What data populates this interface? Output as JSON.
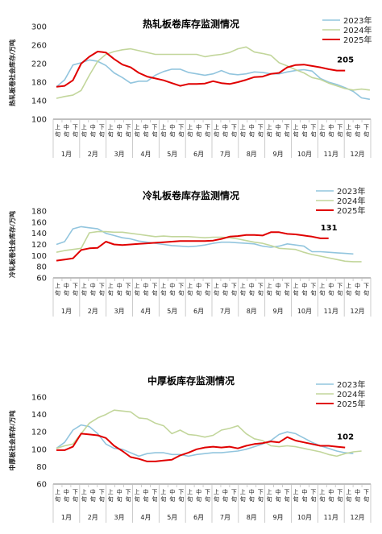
{
  "colors": {
    "s2023": "#92c5de",
    "s2024": "#c2d69b",
    "s2025": "#e00000",
    "axis": "#808080"
  },
  "chart_data": [
    {
      "type": "line",
      "title": "热轧板卷库存监测情况",
      "ylabel": "热轧板卷社会库存/万吨",
      "ylim": [
        100,
        300
      ],
      "yticks": [
        100,
        140,
        180,
        220,
        260,
        300
      ],
      "xtick_labels": [
        "上旬",
        "中旬",
        "下旬",
        "上旬",
        "中旬",
        "下旬",
        "上旬",
        "中旬",
        "下旬",
        "上旬",
        "中旬",
        "下旬",
        "上旬",
        "中旬",
        "下旬",
        "上旬",
        "中旬",
        "下旬",
        "上旬",
        "中旬",
        "下旬",
        "上旬",
        "中旬",
        "下旬",
        "上旬",
        "中旬",
        "下旬",
        "上旬",
        "中旬",
        "下旬",
        "上旬",
        "中旬",
        "下旬",
        "上旬",
        "中旬",
        "下旬"
      ],
      "months": [
        "1月",
        "2月",
        "3月",
        "4月",
        "5月",
        "6月",
        "7月",
        "8月",
        "9月",
        "10月",
        "11月",
        "12月"
      ],
      "series": [
        {
          "name": "2023年",
          "values": [
            170,
            185,
            217,
            222,
            228,
            225,
            216,
            200,
            190,
            178,
            182,
            182,
            195,
            203,
            208,
            208,
            201,
            198,
            195,
            198,
            205,
            198,
            196,
            198,
            202,
            201,
            198,
            198,
            202,
            205,
            207,
            204,
            188,
            180,
            175,
            168,
            160,
            146,
            143
          ]
        },
        {
          "name": "2024年",
          "values": [
            145,
            149,
            152,
            162,
            195,
            225,
            240,
            246,
            250,
            252,
            248,
            244,
            240,
            240,
            240,
            240,
            240,
            240,
            235,
            238,
            240,
            244,
            252,
            256,
            245,
            242,
            238,
            222,
            215,
            207,
            200,
            190,
            186,
            178,
            172,
            166,
            163,
            165,
            163
          ]
        },
        {
          "name": "2025年",
          "values": [
            170,
            172,
            184,
            220,
            235,
            246,
            244,
            230,
            218,
            212,
            200,
            192,
            188,
            184,
            178,
            172,
            176,
            176,
            177,
            182,
            178,
            176,
            180,
            185,
            191,
            192,
            198,
            200,
            212,
            217,
            218,
            215,
            212,
            208,
            205,
            205
          ]
        }
      ],
      "end_label": "205"
    },
    {
      "type": "line",
      "title": "冷轧板卷库存监测情况",
      "ylabel": "冷轧板卷社会库存/万吨",
      "ylim": [
        60,
        180
      ],
      "yticks": [
        60,
        80,
        100,
        120,
        140,
        160,
        180
      ],
      "xtick_labels": [
        "上旬",
        "中旬",
        "下旬",
        "上旬",
        "中旬",
        "下旬",
        "上旬",
        "中旬",
        "下旬",
        "上旬",
        "中旬",
        "下旬",
        "上旬",
        "中旬",
        "下旬",
        "上旬",
        "中旬",
        "下旬",
        "上旬",
        "中旬",
        "下旬",
        "上旬",
        "中旬",
        "下旬",
        "上旬",
        "中旬",
        "下旬",
        "上旬",
        "中旬",
        "下旬",
        "上旬",
        "中旬",
        "下旬",
        "上旬",
        "中旬",
        "下旬"
      ],
      "months": [
        "1月",
        "2月",
        "3月",
        "4月",
        "5月",
        "6月",
        "7月",
        "8月",
        "9月",
        "10月",
        "11月",
        "12月"
      ],
      "series": [
        {
          "name": "2023年",
          "values": [
            120,
            125,
            148,
            152,
            150,
            148,
            140,
            136,
            132,
            130,
            126,
            124,
            122,
            120,
            118,
            117,
            116,
            117,
            119,
            122,
            124,
            124,
            123,
            122,
            121,
            117,
            115,
            117,
            121,
            119,
            117,
            107,
            107,
            106,
            105,
            104,
            103
          ]
        },
        {
          "name": "2024年",
          "values": [
            106,
            109,
            111,
            113,
            141,
            143,
            143,
            142,
            142,
            140,
            138,
            136,
            134,
            135,
            134,
            134,
            134,
            133,
            132,
            133,
            133,
            132,
            130,
            127,
            124,
            122,
            118,
            113,
            112,
            111,
            106,
            102,
            99,
            96,
            93,
            90,
            89,
            89
          ]
        },
        {
          "name": "2025年",
          "values": [
            91,
            93,
            95,
            110,
            113,
            114,
            125,
            120,
            119,
            120,
            121,
            122,
            123,
            124,
            125,
            126,
            126,
            126,
            126,
            127,
            130,
            134,
            135,
            137,
            137,
            136,
            142,
            142,
            139,
            138,
            136,
            134,
            131,
            131
          ]
        }
      ],
      "end_label": "131"
    },
    {
      "type": "line",
      "title": "中厚板库存监测情况",
      "ylabel": "中厚板社会库存/万吨",
      "ylim": [
        60,
        160
      ],
      "yticks": [
        60,
        80,
        100,
        120,
        140,
        160
      ],
      "xtick_labels": [
        "上旬",
        "中旬",
        "下旬",
        "上旬",
        "中旬",
        "下旬",
        "上旬",
        "中旬",
        "下旬",
        "上旬",
        "中旬",
        "下旬",
        "上旬",
        "中旬",
        "下旬",
        "上旬",
        "中旬",
        "下旬",
        "上旬",
        "中旬",
        "下旬",
        "上旬",
        "中旬",
        "下旬",
        "上旬",
        "中旬",
        "下旬",
        "上旬",
        "中旬",
        "下旬",
        "上旬",
        "中旬",
        "下旬",
        "上旬",
        "中旬",
        "下旬"
      ],
      "months": [
        "1月",
        "2月",
        "3月",
        "4月",
        "5月",
        "6月",
        "7月",
        "8月",
        "9月",
        "10月",
        "11月",
        "12月"
      ],
      "series": [
        {
          "name": "2023年",
          "values": [
            101,
            108,
            122,
            128,
            126,
            118,
            106,
            101,
            100,
            96,
            92,
            95,
            96,
            96,
            94,
            94,
            92,
            94,
            95,
            96,
            96,
            97,
            98,
            100,
            103,
            106,
            110,
            117,
            120,
            118,
            113,
            108,
            104,
            101,
            98,
            96,
            95
          ]
        },
        {
          "name": "2024年",
          "values": [
            101,
            104,
            106,
            118,
            130,
            136,
            140,
            145,
            144,
            143,
            136,
            135,
            130,
            127,
            118,
            122,
            117,
            116,
            114,
            116,
            122,
            124,
            127,
            118,
            112,
            110,
            104,
            103,
            104,
            103,
            101,
            99,
            97,
            94,
            92,
            95,
            97,
            98
          ]
        },
        {
          "name": "2025年",
          "values": [
            99,
            99,
            103,
            118,
            117,
            116,
            113,
            104,
            98,
            91,
            89,
            86,
            86,
            87,
            88,
            93,
            96,
            100,
            102,
            103,
            102,
            103,
            101,
            104,
            106,
            107,
            109,
            108,
            114,
            110,
            108,
            106,
            104,
            104,
            103,
            102
          ]
        }
      ],
      "end_label": "102"
    }
  ]
}
